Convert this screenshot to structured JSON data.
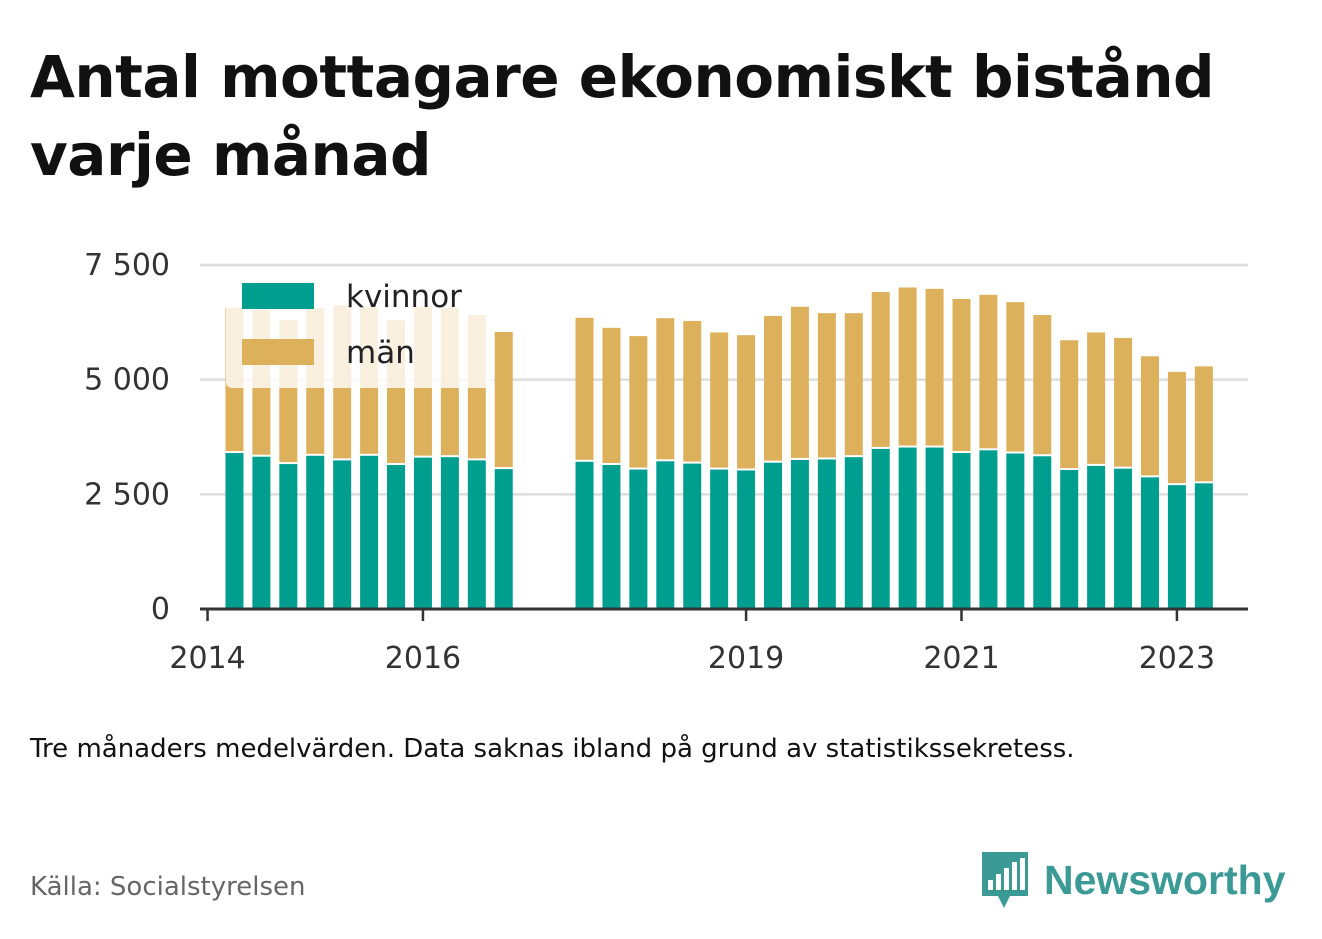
{
  "title": "Antal mottagare ekonomiskt bistånd varje månad",
  "note": "Tre månaders medelvärden. Data saknas ibland på grund av statistikssekretess.",
  "source": "Källa: Socialstyrelsen",
  "brand": {
    "name": "Newsworthy",
    "icon": "newsworthy-chart-logo-icon"
  },
  "colors": {
    "kvinnor": "#009e8f",
    "man": "#ddb05c",
    "grid": "#dddddd",
    "axis": "#333333",
    "text": "#333333",
    "brand": "#3b9a95"
  },
  "chart_data": {
    "type": "bar",
    "stacked": true,
    "legend_position": "top-left",
    "grid": true,
    "xlabel": "",
    "ylabel": "",
    "ylim": [
      0,
      7500
    ],
    "yticks": [
      0,
      2500,
      5000,
      7500
    ],
    "ytick_labels": [
      "0",
      "2 500",
      "5 000",
      "7 500"
    ],
    "xticks": [
      2014,
      2016,
      2019,
      2021,
      2023
    ],
    "xtick_labels": [
      "2014",
      "2016",
      "2019",
      "2021",
      "2023"
    ],
    "xlim": [
      2013.93,
      2023.66
    ],
    "x": [
      2014.25,
      2014.5,
      2014.75,
      2015.0,
      2015.25,
      2015.5,
      2015.75,
      2016.0,
      2016.25,
      2016.5,
      2016.75,
      2017.5,
      2017.75,
      2018.0,
      2018.25,
      2018.5,
      2018.75,
      2019.0,
      2019.25,
      2019.5,
      2019.75,
      2020.0,
      2020.25,
      2020.5,
      2020.75,
      2021.0,
      2021.25,
      2021.5,
      2021.75,
      2022.0,
      2022.25,
      2022.5,
      2022.75,
      2023.0,
      2023.25
    ],
    "series": [
      {
        "name": "kvinnor",
        "values": [
          3400,
          3320,
          3160,
          3340,
          3240,
          3340,
          3140,
          3300,
          3310,
          3240,
          3050,
          3210,
          3140,
          3040,
          3220,
          3170,
          3040,
          3020,
          3190,
          3250,
          3260,
          3310,
          3490,
          3520,
          3520,
          3400,
          3460,
          3390,
          3330,
          3030,
          3120,
          3060,
          2870,
          2700,
          2740
        ]
      },
      {
        "name": "män",
        "values": [
          3170,
          3200,
          3140,
          3220,
          3380,
          3240,
          3160,
          3290,
          3260,
          3170,
          2990,
          3140,
          2990,
          2910,
          3120,
          3110,
          2990,
          2950,
          3200,
          3340,
          3190,
          3140,
          3420,
          3490,
          3460,
          3360,
          3390,
          3300,
          3080,
          2830,
          2910,
          2850,
          2640,
          2470,
          2550
        ]
      }
    ]
  }
}
